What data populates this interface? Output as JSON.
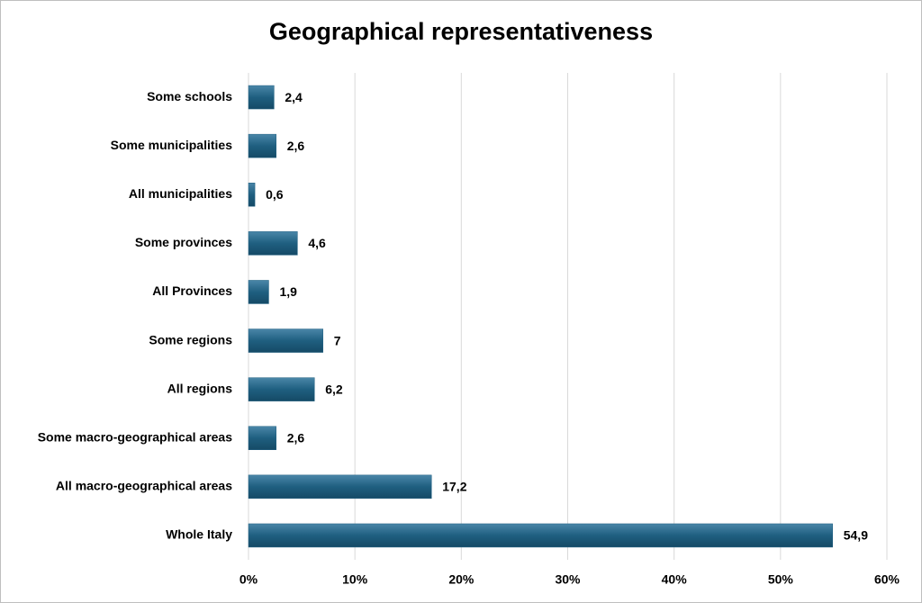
{
  "chart_data": {
    "type": "bar",
    "orientation": "horizontal",
    "title": "Geographical representativeness",
    "categories": [
      "Some schools",
      "Some municipalities",
      "All municipalities",
      "Some provinces",
      "All Provinces",
      "Some regions",
      "All regions",
      "Some macro-geographical areas",
      "All macro-geographical areas",
      "Whole Italy"
    ],
    "values": [
      2.4,
      2.6,
      0.6,
      4.6,
      1.9,
      7,
      6.2,
      2.6,
      17.2,
      54.9
    ],
    "value_labels": [
      "2,4",
      "2,6",
      "0,6",
      "4,6",
      "1,9",
      "7",
      "6,2",
      "2,6",
      "17,2",
      "54,9"
    ],
    "color": "#1f5f80",
    "xlim": [
      0,
      60
    ],
    "xticks": [
      {
        "value": 0,
        "label": "0%"
      },
      {
        "value": 10,
        "label": "10%"
      },
      {
        "value": 20,
        "label": "20%"
      },
      {
        "value": 30,
        "label": "30%"
      },
      {
        "value": 40,
        "label": "40%"
      },
      {
        "value": 50,
        "label": "50%"
      },
      {
        "value": 60,
        "label": "60%"
      }
    ],
    "grid": true
  }
}
